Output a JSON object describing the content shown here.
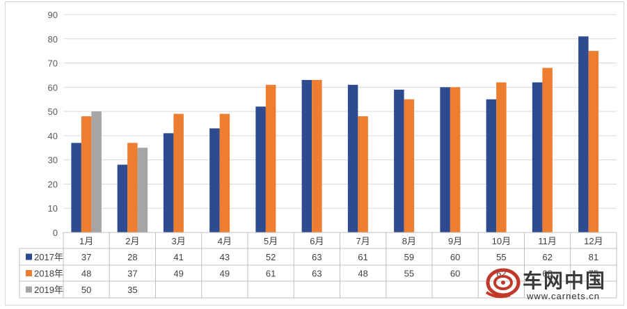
{
  "chart_data": {
    "type": "bar",
    "categories": [
      "1月",
      "2月",
      "3月",
      "4月",
      "5月",
      "6月",
      "7月",
      "8月",
      "9月",
      "10月",
      "11月",
      "12月"
    ],
    "series": [
      {
        "name": "2017年",
        "color": "#2e4b8f",
        "values": [
          37,
          28,
          41,
          43,
          52,
          63,
          61,
          59,
          60,
          55,
          62,
          81
        ]
      },
      {
        "name": "2018年",
        "color": "#ed7d31",
        "values": [
          48,
          37,
          49,
          49,
          61,
          63,
          48,
          55,
          60,
          62,
          68,
          75
        ]
      },
      {
        "name": "2019年",
        "color": "#a5a5a5",
        "values": [
          50,
          35,
          null,
          null,
          null,
          null,
          null,
          null,
          null,
          null,
          null,
          null
        ]
      }
    ],
    "yticks": [
      0,
      10,
      20,
      30,
      40,
      50,
      60,
      70,
      80,
      90
    ],
    "ylim": [
      0,
      90
    ],
    "grid": true,
    "legend": "data-table-left"
  },
  "watermark": {
    "title": "车网中国",
    "url": "www.carnets.cn"
  }
}
